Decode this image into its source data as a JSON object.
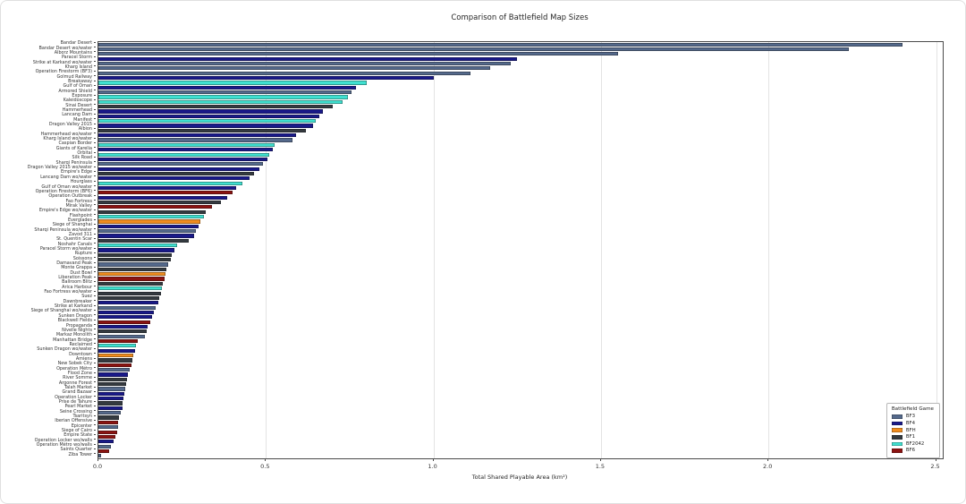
{
  "title": "Comparison of Battlefield Map Sizes",
  "xaxis_label": "Total Shared Playable Area (km²)",
  "legend": {
    "title": "Battlefield Game",
    "entries": [
      {
        "label": "BF3",
        "color": "#54698b"
      },
      {
        "label": "BF4",
        "color": "#191989"
      },
      {
        "label": "BFH",
        "color": "#f08c1e"
      },
      {
        "label": "BF1",
        "color": "#343a40"
      },
      {
        "label": "BF2042",
        "color": "#40e0d0"
      },
      {
        "label": "BF6",
        "color": "#8b1311"
      }
    ]
  },
  "chart_data": {
    "type": "bar",
    "orientation": "horizontal",
    "title": "Comparison of Battlefield Map Sizes",
    "xlabel": "Total Shared Playable Area (km²)",
    "ylabel": "",
    "xlim": [
      0,
      2.52
    ],
    "xticks": [
      0.0,
      0.5,
      1.0,
      1.5,
      2.0,
      2.5
    ],
    "grid": true,
    "legend_position": "lower right",
    "series_key": "games",
    "colors": {
      "BF3": "#54698b",
      "BF4": "#191989",
      "BFH": "#f08c1e",
      "BF1": "#343a40",
      "BF2042": "#40e0d0",
      "BF6": "#8b1311"
    },
    "categories": [
      "Bandar Desert",
      "Bandar Desert wo/water",
      "Alborz Mountains",
      "Paracel Storm",
      "Strike at Karkand wo/water",
      "Kharg Island",
      "Operation Firestorm (BF3)",
      "Golmud Railway",
      "Breakaway",
      "Gulf of Oman",
      "Armored Shield",
      "Exposure",
      "Kaleidoscope",
      "Sinai Desert",
      "Hammerhead",
      "Lancang Dam",
      "Manifest",
      "Dragon Valley 2015",
      "Albion",
      "Hammerhead wo/water",
      "Kharg Island wo/water",
      "Caspian Border",
      "Giants of Karelia",
      "Orbital",
      "Silk Road",
      "Sharqi Peninsula",
      "Dragon Valley 2015 wo/water",
      "Empire's Edge",
      "Lancang Dam wo/water",
      "Hourglass",
      "Gulf of Oman wo/water",
      "Operation Firestorm (BF6)",
      "Operation Outbreak",
      "Fao Fortress",
      "Mirak Valley",
      "Empire's Edge wo/water",
      "Flashpoint",
      "Everglades",
      "Siege of Shanghai",
      "Sharqi Peninsula wo/water",
      "Zavod 311",
      "St. Quentin Scar",
      "Noshahr Canals",
      "Paracel Storm wo/water",
      "Rupture",
      "Soissons",
      "Damavand Peak",
      "Monte Grappa",
      "Dust Bowl",
      "Liberation Peak",
      "Ballroom Blitz",
      "Arica Harbour",
      "Fao Fortress wo/water",
      "Suez",
      "Dawnbreaker",
      "Strike at Karkand",
      "Siege of Shanghai wo/water",
      "Sunken Dragon",
      "Blackwell Fields",
      "Propaganda",
      "Nivelle Nights",
      "Markaz Monolith",
      "Manhattan Bridge",
      "Reclaimed",
      "Sunken Dragon wo/water",
      "Downtown",
      "Amiens",
      "New Sobek City",
      "Operation Métro",
      "Flood Zone",
      "River Somme",
      "Argonne Forest",
      "Talah Market",
      "Grand Bazaar",
      "Operation Locker",
      "Prise de Tahure",
      "Pearl Market",
      "Seine Crossing",
      "Tsaritsyn",
      "Iberian Offensive",
      "Epicenter",
      "Siege of Cairo",
      "Empire State",
      "Operation Locker wo/walls",
      "Operation Métro wo/walls",
      "Saints Quarter",
      "Ziba Tower"
    ],
    "games": [
      "BF3",
      "BF3",
      "BF3",
      "BF4",
      "BF3",
      "BF3",
      "BF3",
      "BF4",
      "BF2042",
      "BF4",
      "BF3",
      "BF2042",
      "BF2042",
      "BF1",
      "BF4",
      "BF4",
      "BF2042",
      "BF4",
      "BF1",
      "BF4",
      "BF3",
      "BF2042",
      "BF4",
      "BF2042",
      "BF4",
      "BF3",
      "BF4",
      "BF1",
      "BF4",
      "BF2042",
      "BF4",
      "BF6",
      "BF4",
      "BF1",
      "BF6",
      "BF1",
      "BF2042",
      "BFH",
      "BF4",
      "BF3",
      "BF4",
      "BF1",
      "BF2042",
      "BF4",
      "BF1",
      "BF1",
      "BF3",
      "BF1",
      "BFH",
      "BF6",
      "BF1",
      "BF2042",
      "BF1",
      "BF1",
      "BF4",
      "BF3",
      "BF4",
      "BF4",
      "BF6",
      "BF4",
      "BF1",
      "BF3",
      "BF6",
      "BF2042",
      "BF4",
      "BFH",
      "BF1",
      "BF6",
      "BF3",
      "BF4",
      "BF1",
      "BF1",
      "BF3",
      "BF4",
      "BF4",
      "BF1",
      "BF4",
      "BF3",
      "BF1",
      "BF6",
      "BF3",
      "BF6",
      "BF6",
      "BF4",
      "BF3",
      "BF6",
      "BF3"
    ],
    "values": [
      2.4,
      2.24,
      1.55,
      1.25,
      1.23,
      1.17,
      1.11,
      1.0,
      0.8,
      0.77,
      0.755,
      0.745,
      0.73,
      0.7,
      0.67,
      0.66,
      0.65,
      0.64,
      0.62,
      0.59,
      0.58,
      0.525,
      0.52,
      0.51,
      0.505,
      0.49,
      0.48,
      0.465,
      0.45,
      0.43,
      0.41,
      0.4,
      0.385,
      0.365,
      0.34,
      0.32,
      0.315,
      0.305,
      0.3,
      0.29,
      0.285,
      0.27,
      0.235,
      0.227,
      0.22,
      0.215,
      0.207,
      0.204,
      0.2,
      0.198,
      0.193,
      0.19,
      0.188,
      0.182,
      0.178,
      0.171,
      0.166,
      0.16,
      0.155,
      0.148,
      0.145,
      0.14,
      0.118,
      0.113,
      0.11,
      0.105,
      0.102,
      0.1,
      0.094,
      0.089,
      0.086,
      0.084,
      0.081,
      0.078,
      0.075,
      0.073,
      0.072,
      0.067,
      0.062,
      0.059,
      0.058,
      0.056,
      0.051,
      0.045,
      0.037,
      0.032,
      0.008
    ],
    "xtick_labels": [
      "0.0",
      "0.5",
      "1.0",
      "1.5",
      "2.0",
      "2.5"
    ]
  }
}
